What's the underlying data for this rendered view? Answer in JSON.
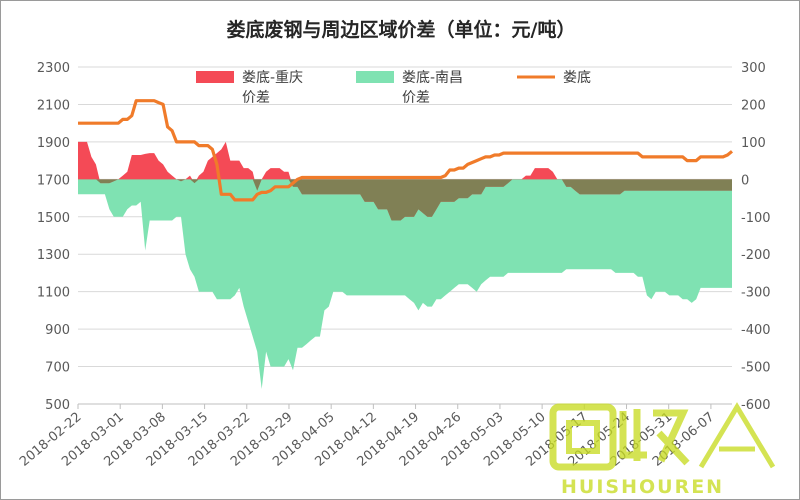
{
  "chart_data": {
    "type": "area",
    "title": "娄底废钢与周边区域价差（单位：元/吨）",
    "x_ticks": [
      "2018-02-22",
      "2018-03-01",
      "2018-03-08",
      "2018-03-15",
      "2018-03-22",
      "2018-03-29",
      "2018-04-05",
      "2018-04-12",
      "2018-04-19",
      "2018-04-26",
      "2018-05-03",
      "2018-05-10",
      "2018-05-17",
      "2018-05-24",
      "2018-05-31",
      "2018-06-07"
    ],
    "left_axis": {
      "ylim": [
        500,
        2300
      ],
      "ticks": [
        "2300",
        "2100",
        "1900",
        "1700",
        "1500",
        "1300",
        "1100",
        "900",
        "700",
        "500"
      ]
    },
    "right_axis": {
      "ylim": [
        -600,
        300
      ],
      "ticks": [
        "300",
        "200",
        "100",
        "0",
        "-100",
        "-200",
        "-300",
        "-400",
        "-500",
        "-600"
      ]
    },
    "legend_position": "top",
    "colors": {
      "loudi_chongqing": "#f44a56",
      "loudi_nanchang": "#7fe2b2",
      "overlap": "#808055",
      "loudi": "#f07b2a"
    },
    "series": [
      {
        "name": "娄底-重庆价差",
        "axis": "right",
        "kind": "area",
        "values": [
          100,
          100,
          100,
          60,
          40,
          -10,
          -10,
          -10,
          -5,
          0,
          10,
          20,
          65,
          65,
          65,
          68,
          70,
          70,
          50,
          40,
          20,
          10,
          0,
          -5,
          0,
          10,
          -10,
          10,
          20,
          50,
          60,
          70,
          80,
          100,
          50,
          50,
          50,
          30,
          30,
          20,
          -30,
          0,
          20,
          30,
          30,
          30,
          20,
          20,
          -20,
          -20,
          -40,
          -40,
          -40,
          -40,
          -40,
          -40,
          -40,
          -40,
          -40,
          -40,
          -40,
          -40,
          -40,
          -40,
          -60,
          -60,
          -60,
          -80,
          -80,
          -80,
          -110,
          -110,
          -110,
          -100,
          -100,
          -100,
          -80,
          -90,
          -100,
          -100,
          -80,
          -60,
          -60,
          -60,
          -60,
          -50,
          -50,
          -50,
          -40,
          -40,
          -40,
          -20,
          -20,
          -20,
          -20,
          -20,
          -10,
          0,
          0,
          0,
          10,
          10,
          30,
          30,
          30,
          30,
          20,
          0,
          0,
          -20,
          -20,
          -30,
          -40,
          -40,
          -40,
          -40,
          -40,
          -40,
          -40,
          -40,
          -40,
          -40,
          -30,
          -30
        ]
      },
      {
        "name": "娄底-南昌价差",
        "axis": "right",
        "kind": "area",
        "values": [
          -40,
          -40,
          -40,
          -40,
          -40,
          -40,
          -40,
          -80,
          -100,
          -100,
          -100,
          -80,
          -70,
          -70,
          -60,
          -190,
          -110,
          -110,
          -110,
          -110,
          -110,
          -110,
          -100,
          -100,
          -200,
          -240,
          -260,
          -300,
          -300,
          -300,
          -300,
          -320,
          -320,
          -320,
          -320,
          -310,
          -290,
          -340,
          -380,
          -420,
          -460,
          -560,
          -460,
          -500,
          -500,
          -500,
          -500,
          -480,
          -510,
          -450,
          -450,
          -440,
          -430,
          -420,
          -420,
          -350,
          -340,
          -300,
          -300,
          -300,
          -310,
          -310,
          -310,
          -310,
          -310,
          -310,
          -310,
          -310,
          -310,
          -310,
          -310,
          -310,
          -310,
          -310,
          -320,
          -330,
          -350,
          -330,
          -340,
          -340,
          -320,
          -320,
          -310,
          -300,
          -290,
          -280,
          -280,
          -280,
          -290,
          -300,
          -280,
          -270,
          -260,
          -260,
          -260,
          -260,
          -250,
          -250,
          -250,
          -250,
          -250,
          -250,
          -250,
          -250,
          -250,
          -250,
          -250,
          -250,
          -250,
          -240,
          -240,
          -240,
          -240,
          -240,
          -240,
          -240,
          -240,
          -240,
          -240,
          -240,
          -250,
          -250,
          -250,
          -250,
          -250,
          -260,
          -260,
          -310,
          -320,
          -300,
          -300,
          -300,
          -310,
          -310,
          -310,
          -320,
          -320,
          -330,
          -320,
          -290
        ]
      },
      {
        "name": "娄底",
        "axis": "right",
        "kind": "line",
        "values": [
          150,
          150,
          150,
          150,
          150,
          150,
          150,
          150,
          150,
          150,
          160,
          160,
          170,
          210,
          210,
          210,
          210,
          210,
          205,
          200,
          140,
          130,
          100,
          100,
          100,
          100,
          100,
          90,
          90,
          90,
          80,
          40,
          -40,
          -40,
          -40,
          -55,
          -55,
          -55,
          -55,
          -55,
          -40,
          -35,
          -35,
          -30,
          -20,
          -20,
          -20,
          -20,
          -10,
          0,
          5,
          5,
          5,
          5,
          5,
          5,
          5,
          5,
          5,
          5,
          5,
          5,
          5,
          5,
          5,
          5,
          5,
          5,
          5,
          5,
          5,
          5,
          5,
          5,
          5,
          5,
          5,
          5,
          5,
          5,
          5,
          5,
          10,
          25,
          25,
          30,
          30,
          40,
          45,
          50,
          55,
          60,
          60,
          65,
          65,
          70,
          70,
          70,
          70,
          70,
          70,
          70,
          70,
          70,
          70,
          70,
          70,
          70,
          70,
          70,
          70,
          70,
          70,
          70,
          70,
          70,
          70,
          70,
          70,
          70,
          70,
          70,
          70,
          70,
          70,
          70,
          60,
          60,
          60,
          60,
          60,
          60,
          60,
          60,
          60,
          60,
          50,
          50,
          50,
          60,
          60,
          60,
          60,
          60,
          60,
          65,
          75
        ]
      }
    ]
  },
  "watermark": {
    "main": "回收",
    "sub": "HUISHOUREN"
  }
}
